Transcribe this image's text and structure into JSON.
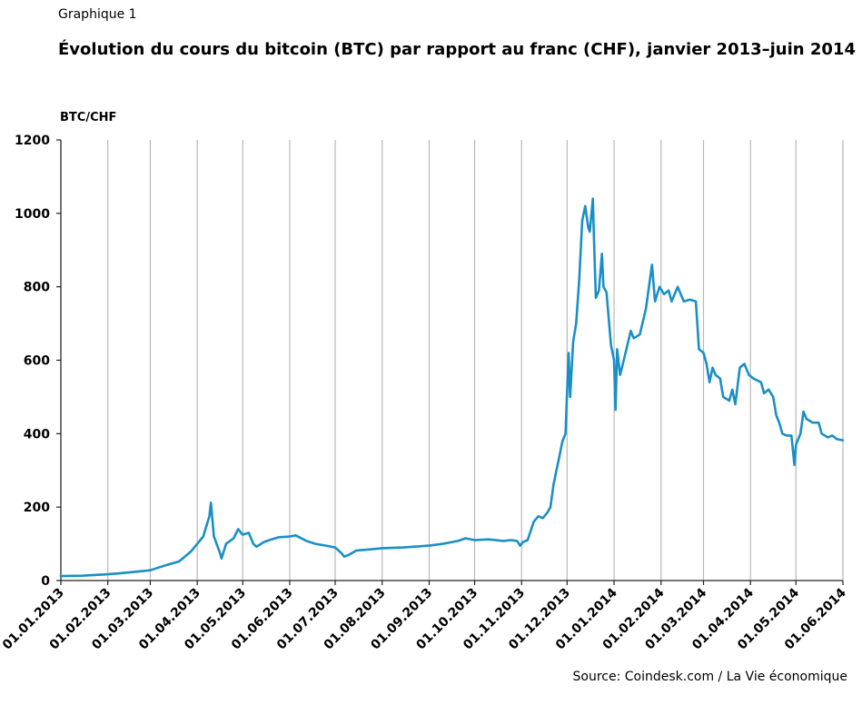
{
  "header": {
    "figure_label": "Graphique 1",
    "title": "Évolution du cours du bitcoin (BTC) par rapport au franc (CHF), janvier 2013–juin 2014",
    "unit": "BTC/CHF",
    "source": "Source: Coindesk.com / La Vie économique"
  },
  "chart_data": {
    "type": "line",
    "title": "Évolution du cours du bitcoin (BTC) par rapport au franc (CHF), janvier 2013–juin 2014",
    "ylabel": "BTC/CHF",
    "xlabel": "",
    "ylim": [
      0,
      1200
    ],
    "yticks": [
      0,
      200,
      400,
      600,
      800,
      1000,
      1200
    ],
    "xlim": [
      "2013-01-01",
      "2014-06-01"
    ],
    "xticks": [
      "01.01.2013",
      "01.02.2013",
      "01.03.2013",
      "01.04.2013",
      "01.05.2013",
      "01.06.2013",
      "01.07.2013",
      "01.08.2013",
      "01.09.2013",
      "01.10.2013",
      "01.11.2013",
      "01.12.2013",
      "01.01.2014",
      "01.02.2014",
      "01.03.2014",
      "01.04.2014",
      "01.05.2014",
      "01.06.2014"
    ],
    "grid": "vertical",
    "color": "#1a8fc6",
    "series": [
      {
        "points": [
          [
            "2013-01-01",
            12
          ],
          [
            "2013-01-15",
            13
          ],
          [
            "2013-02-01",
            17
          ],
          [
            "2013-02-15",
            22
          ],
          [
            "2013-03-01",
            28
          ],
          [
            "2013-03-10",
            40
          ],
          [
            "2013-03-20",
            52
          ],
          [
            "2013-03-28",
            80
          ],
          [
            "2013-04-05",
            120
          ],
          [
            "2013-04-09",
            175
          ],
          [
            "2013-04-10",
            212
          ],
          [
            "2013-04-12",
            120
          ],
          [
            "2013-04-16",
            75
          ],
          [
            "2013-04-17",
            60
          ],
          [
            "2013-04-20",
            100
          ],
          [
            "2013-04-25",
            115
          ],
          [
            "2013-04-28",
            140
          ],
          [
            "2013-05-01",
            125
          ],
          [
            "2013-05-05",
            130
          ],
          [
            "2013-05-08",
            100
          ],
          [
            "2013-05-10",
            92
          ],
          [
            "2013-05-15",
            105
          ],
          [
            "2013-05-20",
            112
          ],
          [
            "2013-05-25",
            118
          ],
          [
            "2013-06-01",
            120
          ],
          [
            "2013-06-05",
            123
          ],
          [
            "2013-06-12",
            108
          ],
          [
            "2013-06-18",
            100
          ],
          [
            "2013-06-25",
            95
          ],
          [
            "2013-07-01",
            90
          ],
          [
            "2013-07-05",
            75
          ],
          [
            "2013-07-07",
            65
          ],
          [
            "2013-07-10",
            70
          ],
          [
            "2013-07-15",
            82
          ],
          [
            "2013-07-25",
            85
          ],
          [
            "2013-08-01",
            88
          ],
          [
            "2013-08-15",
            90
          ],
          [
            "2013-09-01",
            95
          ],
          [
            "2013-09-10",
            100
          ],
          [
            "2013-09-20",
            108
          ],
          [
            "2013-09-25",
            115
          ],
          [
            "2013-10-01",
            110
          ],
          [
            "2013-10-10",
            112
          ],
          [
            "2013-10-15",
            110
          ],
          [
            "2013-10-20",
            108
          ],
          [
            "2013-10-25",
            110
          ],
          [
            "2013-10-29",
            108
          ],
          [
            "2013-10-31",
            95
          ],
          [
            "2013-11-02",
            105
          ],
          [
            "2013-11-05",
            110
          ],
          [
            "2013-11-09",
            160
          ],
          [
            "2013-11-12",
            175
          ],
          [
            "2013-11-15",
            170
          ],
          [
            "2013-11-18",
            185
          ],
          [
            "2013-11-20",
            200
          ],
          [
            "2013-11-22",
            260
          ],
          [
            "2013-11-24",
            300
          ],
          [
            "2013-11-26",
            340
          ],
          [
            "2013-11-28",
            380
          ],
          [
            "2013-11-30",
            400
          ],
          [
            "2013-12-02",
            620
          ],
          [
            "2013-12-03",
            500
          ],
          [
            "2013-12-05",
            650
          ],
          [
            "2013-12-07",
            700
          ],
          [
            "2013-12-09",
            820
          ],
          [
            "2013-12-11",
            980
          ],
          [
            "2013-12-13",
            1020
          ],
          [
            "2013-12-15",
            960
          ],
          [
            "2013-12-16",
            950
          ],
          [
            "2013-12-18",
            1040
          ],
          [
            "2013-12-19",
            900
          ],
          [
            "2013-12-20",
            770
          ],
          [
            "2013-12-22",
            790
          ],
          [
            "2013-12-24",
            890
          ],
          [
            "2013-12-25",
            800
          ],
          [
            "2013-12-27",
            785
          ],
          [
            "2013-12-30",
            640
          ],
          [
            "2014-01-01",
            600
          ],
          [
            "2014-01-02",
            465
          ],
          [
            "2014-01-03",
            630
          ],
          [
            "2014-01-05",
            560
          ],
          [
            "2014-01-08",
            610
          ],
          [
            "2014-01-12",
            680
          ],
          [
            "2014-01-14",
            660
          ],
          [
            "2014-01-18",
            670
          ],
          [
            "2014-01-22",
            740
          ],
          [
            "2014-01-26",
            860
          ],
          [
            "2014-01-28",
            760
          ],
          [
            "2014-01-31",
            800
          ],
          [
            "2014-02-03",
            780
          ],
          [
            "2014-02-06",
            790
          ],
          [
            "2014-02-08",
            760
          ],
          [
            "2014-02-12",
            800
          ],
          [
            "2014-02-16",
            760
          ],
          [
            "2014-02-20",
            765
          ],
          [
            "2014-02-24",
            760
          ],
          [
            "2014-02-26",
            630
          ],
          [
            "2014-03-01",
            620
          ],
          [
            "2014-03-03",
            590
          ],
          [
            "2014-03-05",
            540
          ],
          [
            "2014-03-07",
            580
          ],
          [
            "2014-03-09",
            560
          ],
          [
            "2014-03-12",
            550
          ],
          [
            "2014-03-14",
            500
          ],
          [
            "2014-03-18",
            490
          ],
          [
            "2014-03-20",
            520
          ],
          [
            "2014-03-22",
            480
          ],
          [
            "2014-03-25",
            580
          ],
          [
            "2014-03-28",
            590
          ],
          [
            "2014-03-31",
            560
          ],
          [
            "2014-04-03",
            550
          ],
          [
            "2014-04-08",
            540
          ],
          [
            "2014-04-10",
            510
          ],
          [
            "2014-04-13",
            520
          ],
          [
            "2014-04-16",
            500
          ],
          [
            "2014-04-18",
            450
          ],
          [
            "2014-04-20",
            430
          ],
          [
            "2014-04-22",
            400
          ],
          [
            "2014-04-25",
            395
          ],
          [
            "2014-04-28",
            395
          ],
          [
            "2014-04-30",
            315
          ],
          [
            "2014-05-01",
            370
          ],
          [
            "2014-05-04",
            400
          ],
          [
            "2014-05-06",
            460
          ],
          [
            "2014-05-08",
            440
          ],
          [
            "2014-05-12",
            430
          ],
          [
            "2014-05-16",
            430
          ],
          [
            "2014-05-18",
            400
          ],
          [
            "2014-05-22",
            390
          ],
          [
            "2014-05-25",
            395
          ],
          [
            "2014-05-28",
            385
          ],
          [
            "2014-06-01",
            382
          ]
        ]
      }
    ]
  }
}
